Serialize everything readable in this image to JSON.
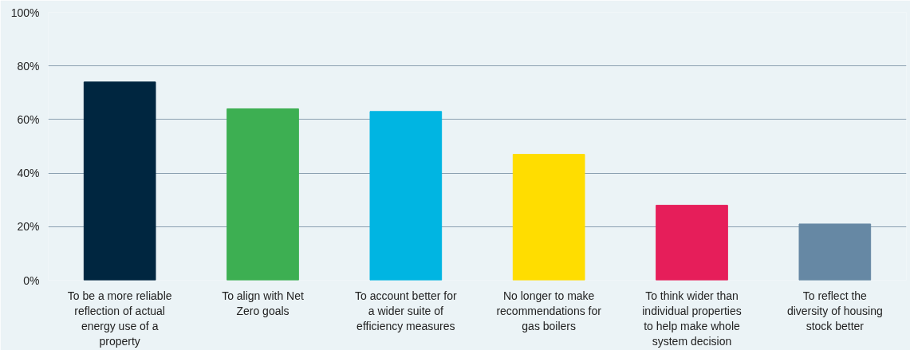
{
  "chart_data": {
    "type": "bar",
    "categories": [
      "To be a more reliable reflection of actual energy use of a property",
      "To align with Net Zero goals",
      "To account better for a wider suite of efficiency measures",
      "No longer to make recommendations for gas boilers",
      "To think wider than individual properties to help make whole system decision",
      "To reflect the diversity of housing stock better"
    ],
    "values": [
      74,
      64,
      63,
      47,
      28,
      21
    ],
    "colors": [
      "#002640",
      "#3daf52",
      "#00b5e2",
      "#ffdd00",
      "#e61e5a",
      "#6688a4"
    ],
    "ylim": [
      0,
      100
    ],
    "yticks": [
      {
        "value": 0,
        "label": "0%"
      },
      {
        "value": 20,
        "label": "20%"
      },
      {
        "value": 40,
        "label": "40%"
      },
      {
        "value": 60,
        "label": "60%"
      },
      {
        "value": 80,
        "label": "80%"
      },
      {
        "value": 100,
        "label": "100%"
      }
    ],
    "grid": "y"
  }
}
